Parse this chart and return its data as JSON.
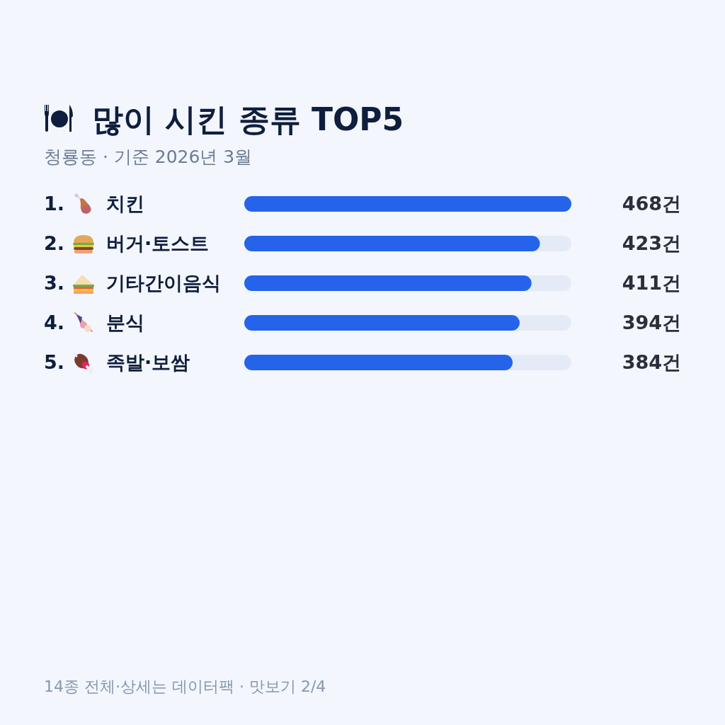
{
  "chart_data": {
    "type": "bar",
    "orientation": "horizontal",
    "title": "많이 시킨 종류 TOP5",
    "subtitle": "청룡동 · 기준 2026년 3월",
    "categories": [
      "1. 치킨",
      "2. 버거·토스트",
      "3. 기타간이음식",
      "4. 분식",
      "5. 족발·보쌈"
    ],
    "values": [
      468,
      423,
      411,
      394,
      384
    ],
    "value_labels": [
      "468건",
      "423건",
      "411건",
      "394건",
      "384건"
    ],
    "color": "#2563eb",
    "annotations": [
      "14종 전체·상세는 데이터팩 · 맛보기 2/4"
    ]
  }
}
